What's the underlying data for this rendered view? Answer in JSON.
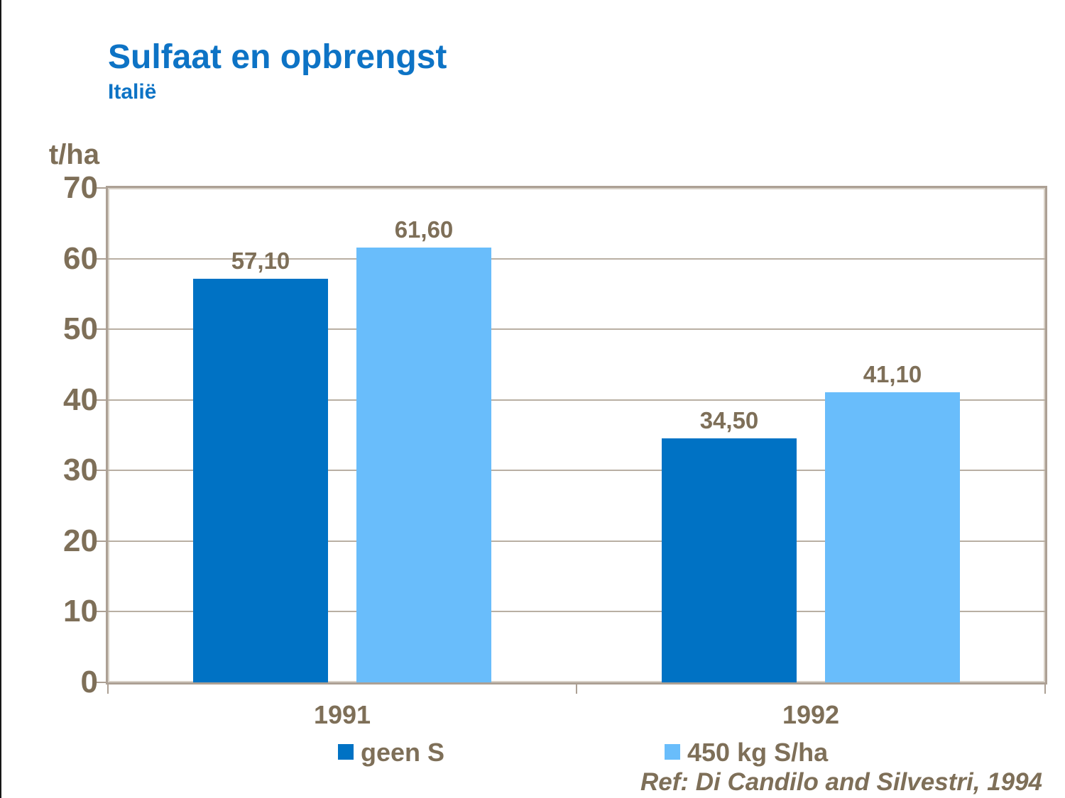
{
  "slide": {
    "title": "Sulfaat en opbrengst",
    "subtitle": "Italië",
    "reference": "Ref: Di Candilo and Silvestri, 1994"
  },
  "chart_data": {
    "type": "bar",
    "title": "Sulfaat en opbrengst",
    "subtitle": "Italië",
    "unit_label": "t/ha",
    "categories": [
      "1991",
      "1992"
    ],
    "series": [
      {
        "name": "geen S",
        "color": "#0072c4",
        "values": [
          57.1,
          34.5
        ],
        "value_labels": [
          "57,10",
          "34,50"
        ]
      },
      {
        "name": "450 kg S/ha",
        "color": "#69bdfb",
        "values": [
          61.6,
          41.1
        ],
        "value_labels": [
          "61,60",
          "41,10"
        ]
      }
    ],
    "ylim": [
      0,
      70
    ],
    "yticks": [
      0,
      10,
      20,
      30,
      40,
      50,
      60,
      70
    ],
    "grid": true,
    "legend_position": "bottom",
    "colors": {
      "title_blue": "#0d73c5",
      "axis_text_brown": "#7e6f58",
      "plot_border": "#aca094",
      "gridline": "#b9afa3",
      "series_dark_blue": "#0072c4",
      "series_light_blue": "#69bdfb",
      "background": "#ffffff"
    }
  }
}
